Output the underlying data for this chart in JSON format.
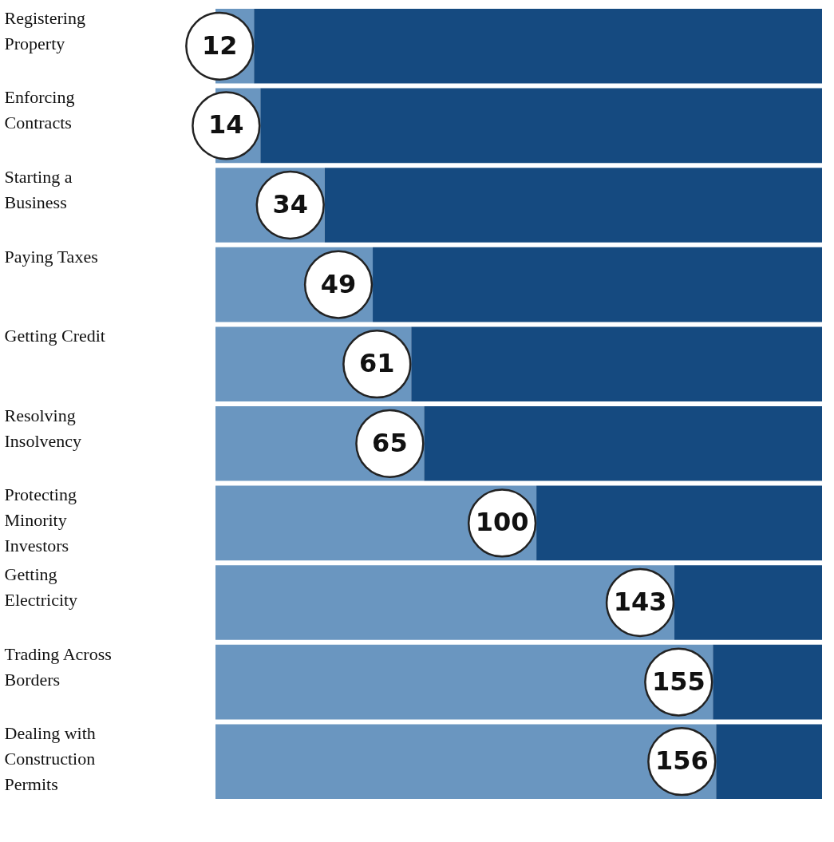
{
  "chart_data": {
    "type": "bar",
    "orientation": "horizontal",
    "stacked": true,
    "categories": [
      "Registering Property",
      "Enforcing Contracts",
      "Starting a Business",
      "Paying Taxes",
      "Getting Credit",
      "Resolving Insolvency",
      "Protecting Minority Investors",
      "Getting Electricity",
      "Trading Across Borders",
      "Dealing with Construction Permits"
    ],
    "series": [
      {
        "color": "#6a96c0",
        "values": [
          12,
          14,
          34,
          49,
          61,
          65,
          100,
          143,
          155,
          156
        ],
        "data_labels": true
      },
      {
        "color": "#154a80",
        "values": [
          177,
          175,
          155,
          140,
          128,
          124,
          89,
          46,
          34,
          33
        ]
      }
    ],
    "xlim": [
      0,
      189
    ],
    "tick_labels": "y"
  }
}
